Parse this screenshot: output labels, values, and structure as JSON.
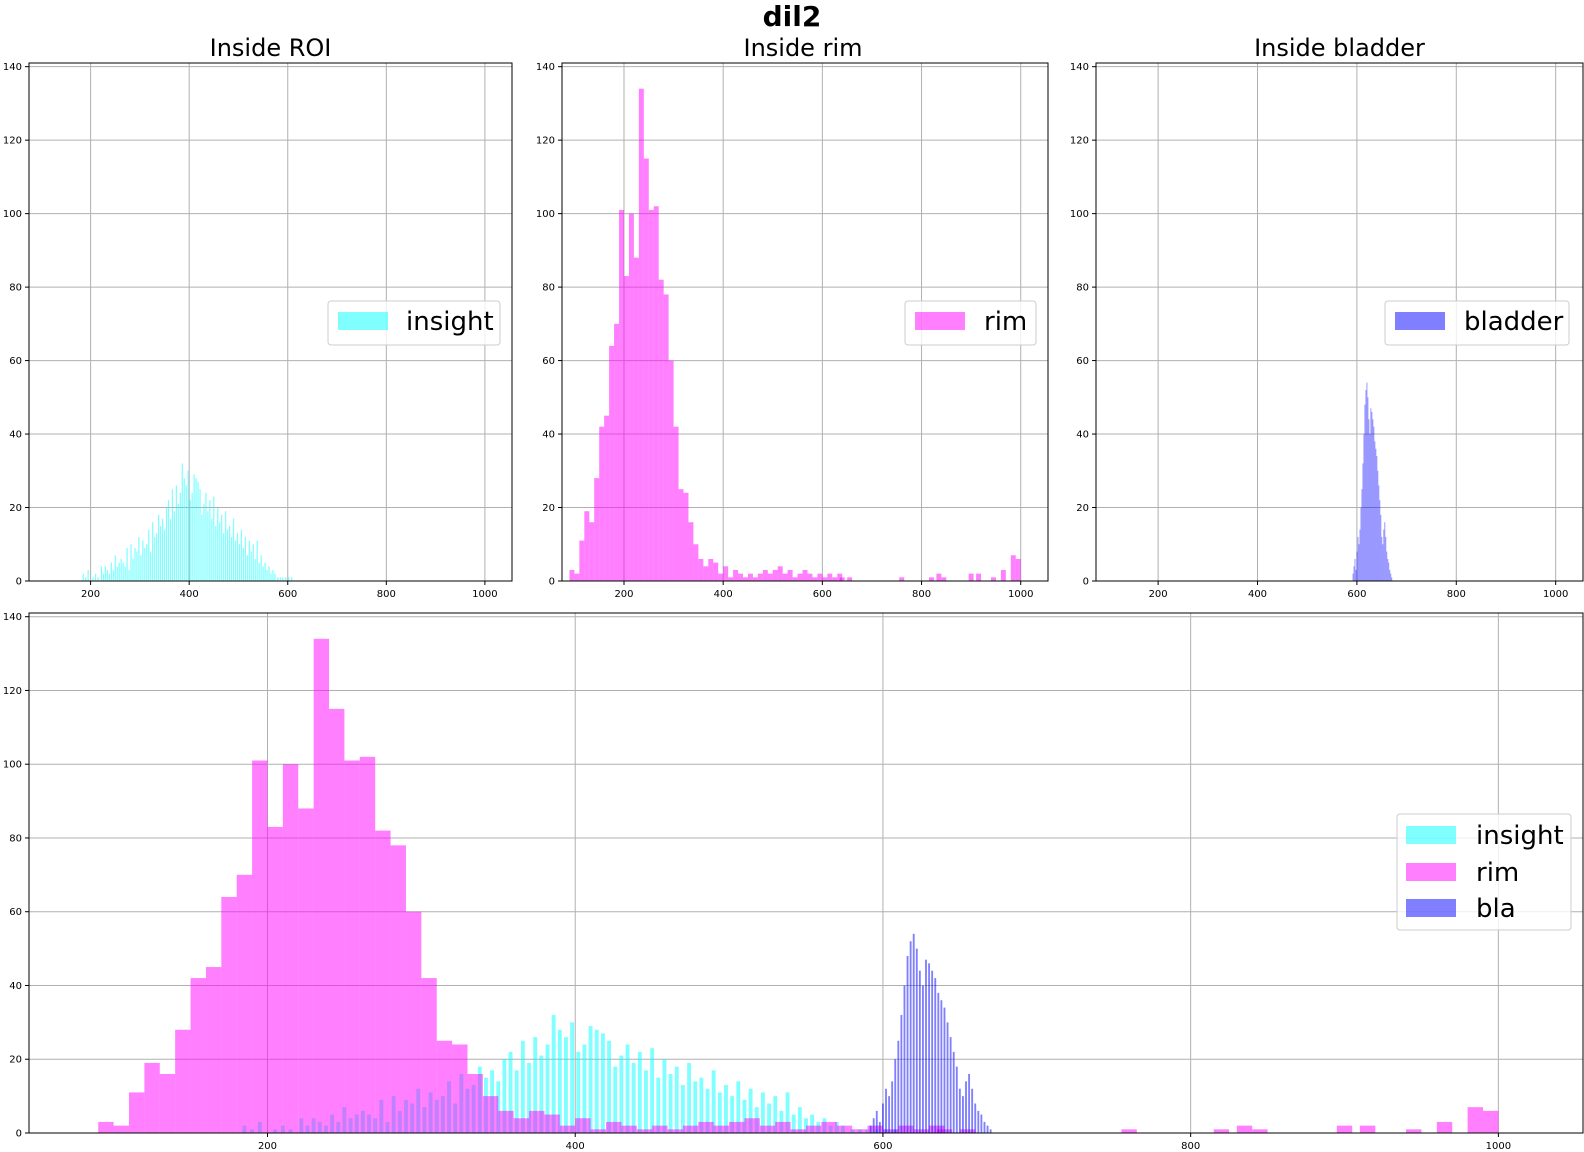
{
  "figure": {
    "title": "dil2"
  },
  "chart_data": [
    {
      "id": "roi",
      "type": "bar",
      "title": "Inside ROI",
      "xlim": [
        75,
        1055
      ],
      "ylim": [
        0,
        141
      ],
      "xticks": [
        200,
        400,
        600,
        800,
        1000
      ],
      "yticks": [
        0,
        20,
        40,
        60,
        80,
        100,
        120,
        140
      ],
      "grid": true,
      "legend": {
        "placement": "center-right",
        "entries": [
          "insight"
        ]
      },
      "series": [
        {
          "name": "insight",
          "color": "#00ffff",
          "alpha": 0.5,
          "bin_width": 2.5,
          "x": [
            185,
            190,
            195,
            205,
            210,
            215,
            222,
            226,
            230,
            234,
            238,
            242,
            246,
            250,
            254,
            258,
            262,
            266,
            270,
            274,
            278,
            282,
            286,
            290,
            294,
            298,
            302,
            306,
            310,
            314,
            318,
            322,
            326,
            330,
            334,
            338,
            342,
            346,
            350,
            354,
            358,
            362,
            366,
            370,
            374,
            378,
            382,
            386,
            390,
            394,
            398,
            402,
            406,
            410,
            414,
            418,
            422,
            426,
            430,
            434,
            438,
            442,
            446,
            450,
            454,
            458,
            462,
            466,
            470,
            474,
            478,
            482,
            486,
            490,
            494,
            498,
            502,
            506,
            510,
            514,
            518,
            522,
            526,
            530,
            534,
            538,
            542,
            546,
            550,
            554,
            558,
            562,
            566,
            570,
            574,
            580,
            585,
            590,
            596,
            602,
            608
          ],
          "values": [
            2,
            1,
            3,
            1,
            2,
            1,
            4,
            2,
            4,
            3,
            2,
            5,
            3,
            7,
            4,
            5,
            6,
            5,
            4,
            9,
            3,
            10,
            6,
            9,
            8,
            12,
            7,
            11,
            9,
            10,
            14,
            8,
            16,
            12,
            13,
            18,
            15,
            17,
            14,
            20,
            22,
            17,
            25,
            19,
            26,
            21,
            24,
            32,
            28,
            26,
            30,
            22,
            24,
            29,
            28,
            27,
            25,
            18,
            21,
            24,
            19,
            22,
            17,
            23,
            15,
            20,
            16,
            18,
            13,
            19,
            14,
            15,
            12,
            17,
            11,
            13,
            10,
            14,
            9,
            12,
            7,
            11,
            8,
            10,
            6,
            11,
            5,
            7,
            4,
            5,
            3,
            4,
            2,
            3,
            2,
            1,
            1,
            1,
            1,
            1,
            1
          ]
        }
      ]
    },
    {
      "id": "rim",
      "type": "bar",
      "title": "Inside rim",
      "xlim": [
        75,
        1055
      ],
      "ylim": [
        0,
        141
      ],
      "xticks": [
        200,
        400,
        600,
        800,
        1000
      ],
      "yticks": [
        0,
        20,
        40,
        60,
        80,
        100,
        120,
        140
      ],
      "grid": true,
      "legend": {
        "placement": "center-right",
        "entries": [
          "rim"
        ]
      },
      "series": [
        {
          "name": "rim",
          "color": "#ff00ff",
          "alpha": 0.5,
          "bin_width": 10,
          "x": [
            95,
            105,
            115,
            125,
            135,
            145,
            155,
            165,
            175,
            185,
            195,
            205,
            215,
            225,
            235,
            245,
            255,
            265,
            275,
            285,
            295,
            305,
            315,
            325,
            335,
            345,
            355,
            365,
            375,
            385,
            395,
            405,
            415,
            425,
            435,
            445,
            455,
            465,
            475,
            485,
            495,
            505,
            515,
            525,
            535,
            545,
            555,
            565,
            575,
            585,
            595,
            605,
            615,
            625,
            635,
            645,
            655,
            665,
            675,
            685,
            695,
            705,
            715,
            725,
            735,
            745,
            755,
            765,
            775,
            785,
            795,
            805,
            815,
            825,
            835,
            845,
            855,
            865,
            875,
            885,
            895,
            905,
            915,
            925,
            935,
            945,
            955,
            965,
            975,
            985,
            995
          ],
          "values": [
            3,
            2,
            11,
            19,
            16,
            28,
            42,
            45,
            64,
            70,
            101,
            83,
            100,
            88,
            134,
            115,
            101,
            102,
            82,
            78,
            60,
            42,
            25,
            24,
            16,
            10,
            6,
            4,
            6,
            5,
            2,
            4,
            1,
            3,
            2,
            1,
            2,
            1,
            2,
            3,
            2,
            3,
            4,
            2,
            3,
            1,
            2,
            3,
            2,
            1,
            2,
            1,
            2,
            1,
            2,
            0,
            0,
            0,
            0,
            0,
            0,
            0,
            0,
            0,
            0,
            0,
            0,
            0,
            0,
            0,
            0,
            0,
            0,
            0,
            0,
            0,
            0,
            0,
            0,
            0,
            0,
            0,
            0,
            0,
            0,
            0,
            0,
            0,
            0,
            0,
            0
          ],
          "tail_x": [
            605,
            615,
            625,
            640,
            655,
            760,
            820,
            835,
            845,
            900,
            915,
            945,
            965,
            985,
            995
          ],
          "tail_values": [
            2,
            1,
            2,
            1,
            1,
            1,
            1,
            2,
            1,
            2,
            2,
            1,
            3,
            7,
            6
          ]
        }
      ]
    },
    {
      "id": "bladder",
      "type": "bar",
      "title": "Inside bladder",
      "xlim": [
        75,
        1055
      ],
      "ylim": [
        0,
        141
      ],
      "xticks": [
        200,
        400,
        600,
        800,
        1000
      ],
      "yticks": [
        0,
        20,
        40,
        60,
        80,
        100,
        120,
        140
      ],
      "grid": true,
      "legend": {
        "placement": "center-right",
        "entries": [
          "bladder"
        ]
      },
      "series": [
        {
          "name": "bladder",
          "color": "#0000ff",
          "alpha": 0.5,
          "bin_width": 1.2,
          "x": [
            592,
            594,
            596,
            598,
            600,
            602,
            604,
            606,
            608,
            610,
            612,
            614,
            616,
            618,
            620,
            622,
            624,
            626,
            628,
            630,
            632,
            634,
            636,
            638,
            640,
            642,
            644,
            646,
            648,
            650,
            652,
            654,
            656,
            658,
            660,
            662,
            664,
            666,
            668,
            670
          ],
          "values": [
            2,
            4,
            6,
            3,
            8,
            12,
            10,
            14,
            20,
            25,
            32,
            40,
            48,
            52,
            54,
            50,
            44,
            40,
            47,
            46,
            44,
            42,
            38,
            36,
            34,
            30,
            26,
            22,
            18,
            12,
            10,
            14,
            16,
            12,
            8,
            6,
            5,
            3,
            2,
            1
          ]
        }
      ]
    },
    {
      "id": "combined",
      "type": "bar",
      "title": "",
      "xlim": [
        45,
        1055
      ],
      "ylim": [
        0,
        141
      ],
      "xticks": [
        200,
        400,
        600,
        800,
        1000
      ],
      "yticks": [
        0,
        20,
        40,
        60,
        80,
        100,
        120,
        140
      ],
      "grid": true,
      "legend": {
        "placement": "center-right",
        "entries": [
          "insight",
          "rim",
          "bla"
        ]
      },
      "series_refs": [
        "roi",
        "rim",
        "bladder"
      ]
    }
  ]
}
